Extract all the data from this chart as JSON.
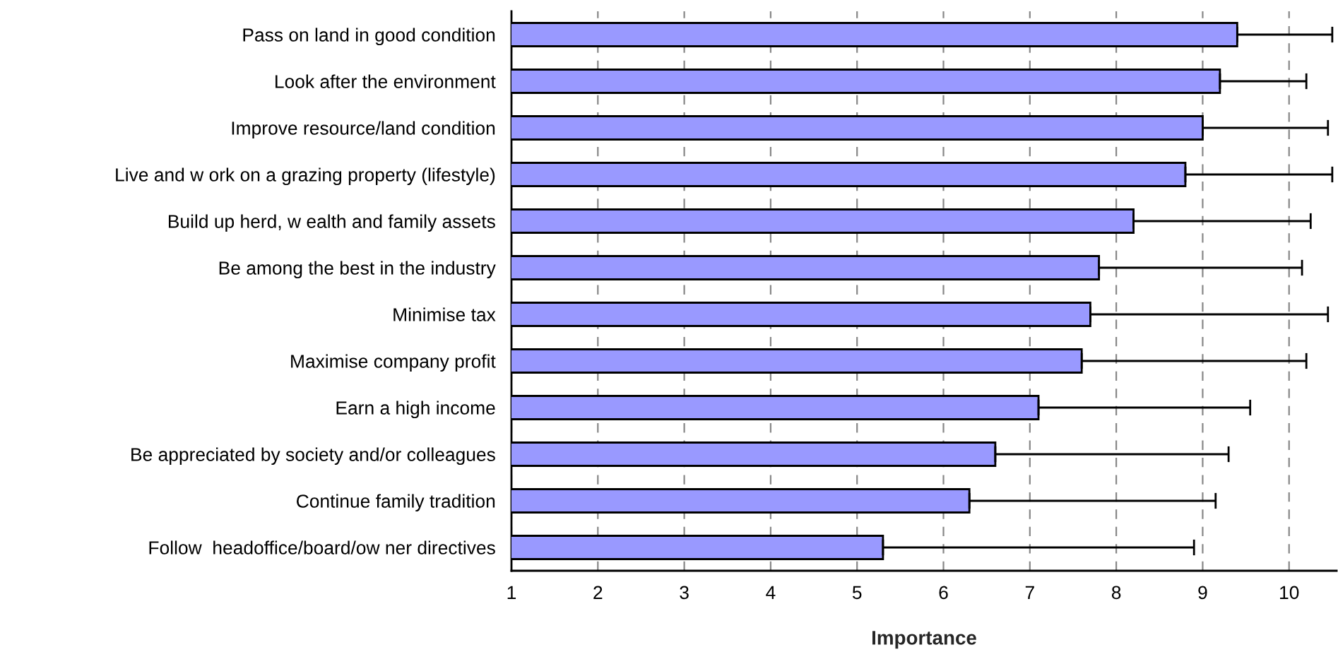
{
  "chart_data": {
    "type": "bar",
    "orientation": "horizontal",
    "xlabel": "Importance",
    "categories": [
      "Pass on land in good condition",
      "Look after the environment",
      "Improve resource/land condition",
      "Live and w ork on a grazing property (lifestyle)",
      "Build up herd, w ealth and family assets",
      "Be among the best in the industry",
      "Minimise tax",
      "Maximise company profit",
      "Earn a high income",
      "Be appreciated by society and/or colleagues",
      "Continue family tradition",
      "Follow  headoffice/board/ow ner directives"
    ],
    "values": [
      9.4,
      9.2,
      9.0,
      8.8,
      8.2,
      7.8,
      7.7,
      7.6,
      7.1,
      6.6,
      6.3,
      5.3
    ],
    "errors": [
      1.1,
      1.0,
      1.45,
      1.7,
      2.05,
      2.35,
      2.75,
      2.6,
      2.45,
      2.7,
      2.85,
      3.6
    ],
    "color": "#9999ff",
    "xlim": [
      1,
      10.55
    ],
    "xticks": [
      1,
      2,
      3,
      4,
      5,
      6,
      7,
      8,
      9,
      10
    ],
    "grid": "x"
  }
}
